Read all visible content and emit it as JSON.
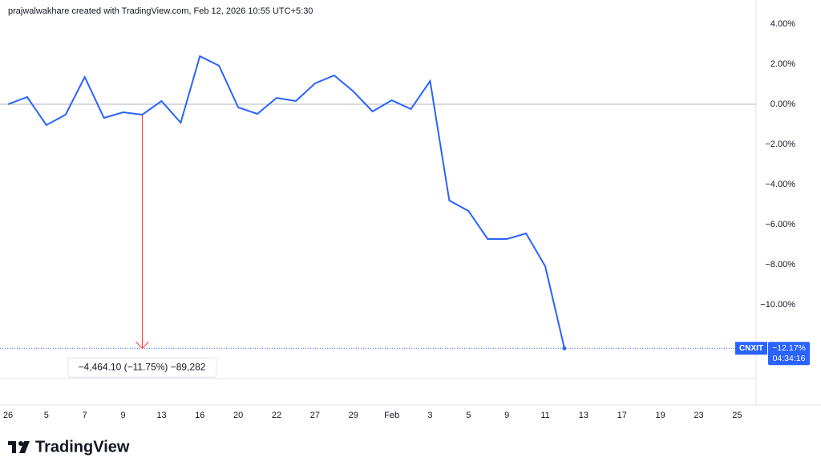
{
  "header": "prajwalwakhare created with TradingView.com, Feb 12, 2026 10:55 UTC+5:30",
  "logo": "TradingView",
  "chart_data": {
    "type": "line",
    "categories": [
      "26",
      null,
      "5",
      null,
      "7",
      null,
      "9",
      null,
      "13",
      null,
      "16",
      null,
      "20",
      null,
      "22",
      null,
      "27",
      null,
      "29",
      null,
      "Feb",
      null,
      "3",
      null,
      "5",
      null,
      "9",
      null,
      "11",
      null,
      "13",
      null,
      "17",
      null,
      "19",
      null,
      "23",
      null,
      "25"
    ],
    "series": [
      {
        "name": "CNXIT",
        "color": "#2962ff",
        "values": [
          0.0,
          0.36,
          -1.04,
          -0.52,
          1.36,
          -0.68,
          -0.4,
          -0.52,
          0.16,
          -0.92,
          2.4,
          1.92,
          -0.16,
          -0.48,
          0.32,
          0.16,
          1.04,
          1.44,
          0.64,
          -0.36,
          0.2,
          -0.24,
          1.16,
          -4.8,
          -5.32,
          -6.72,
          -6.72,
          -6.44,
          -8.08,
          -12.17,
          null,
          null,
          null,
          null,
          null,
          null,
          null,
          null,
          null
        ],
        "last_value_label": {
          "value": -12.17,
          "label": "−12.17%"
        },
        "countdown": "04:34:16"
      }
    ],
    "ylim": [
      -15,
      5.2
    ],
    "yticks": [
      {
        "value": 4,
        "label": "4.00%"
      },
      {
        "value": 2,
        "label": "2.00%"
      },
      {
        "value": 0,
        "label": "0.00%"
      },
      {
        "value": -2,
        "label": "−2.00%"
      },
      {
        "value": -4,
        "label": "−4.00%"
      },
      {
        "value": -6,
        "label": "−6.00%"
      },
      {
        "value": -8,
        "label": "−8.00%"
      },
      {
        "value": -10,
        "label": "−10.00%"
      }
    ],
    "measure": {
      "from_index": 7,
      "to_index": 29,
      "color": "#f23645",
      "label": "−4,464.10 (−11.75%) −89,282"
    }
  }
}
